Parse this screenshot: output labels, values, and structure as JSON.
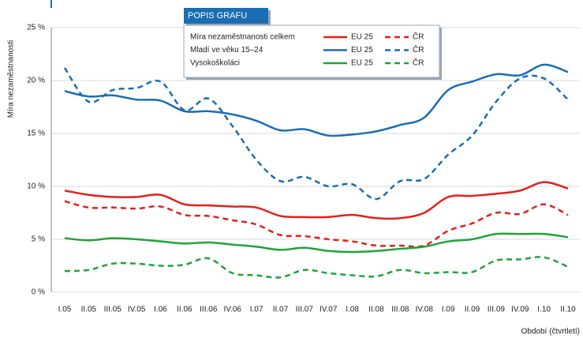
{
  "chart_data": {
    "type": "line",
    "y_label": "Míra nezaměstnanosti",
    "x_label": "Období (čtvrtletí)",
    "legend_title": "POPIS GRAFU",
    "legend_rows": [
      "Míra nezaměstnanosti celkem",
      "Mladí ve věku 15–24",
      "Vysokoškoláci"
    ],
    "categories": [
      "I.05",
      "II.05",
      "III.05",
      "IV.05",
      "I.06",
      "II.06",
      "III.06",
      "IV.06",
      "I.07",
      "II.07",
      "III.07",
      "IV.07",
      "I.08",
      "II.08",
      "III.08",
      "IV.08",
      "I.09",
      "II.09",
      "III.09",
      "IV.09",
      "I.10",
      "II.10"
    ],
    "ylim": [
      0,
      25
    ],
    "yticks": [
      {
        "value": 0,
        "label": "0 %"
      },
      {
        "value": 5,
        "label": "5 %"
      },
      {
        "value": 10,
        "label": "10 %"
      },
      {
        "value": 15,
        "label": "15 %"
      },
      {
        "value": 20,
        "label": "20 %"
      },
      {
        "value": 25,
        "label": "25 %"
      }
    ],
    "grid": true,
    "series": [
      {
        "name": "EU 25",
        "color": "#e2211c",
        "dashed": false,
        "values": [
          9.6,
          9.2,
          9.0,
          9.0,
          9.2,
          8.3,
          8.2,
          8.1,
          8.0,
          7.2,
          7.1,
          7.1,
          7.3,
          7.0,
          7.0,
          7.5,
          9.0,
          9.1,
          9.3,
          9.6,
          10.4,
          9.8
        ]
      },
      {
        "name": "ČR",
        "color": "#e2211c",
        "dashed": true,
        "values": [
          8.6,
          8.0,
          8.0,
          7.9,
          8.1,
          7.3,
          7.2,
          6.8,
          6.4,
          5.4,
          5.3,
          5.0,
          4.8,
          4.4,
          4.4,
          4.4,
          5.8,
          6.5,
          7.5,
          7.4,
          8.3,
          7.3
        ]
      },
      {
        "name": "EU 25",
        "color": "#1a6db3",
        "dashed": false,
        "values": [
          19.0,
          18.5,
          18.6,
          18.2,
          18.1,
          17.1,
          17.1,
          16.8,
          16.2,
          15.3,
          15.4,
          14.8,
          14.9,
          15.2,
          15.8,
          16.5,
          19.1,
          19.9,
          20.6,
          20.5,
          21.5,
          20.8
        ]
      },
      {
        "name": "ČR",
        "color": "#1a6db3",
        "dashed": true,
        "values": [
          21.2,
          18.0,
          19.1,
          19.3,
          19.9,
          17.2,
          18.3,
          15.7,
          12.5,
          10.5,
          10.9,
          10.0,
          10.2,
          8.8,
          10.5,
          10.7,
          13.0,
          14.8,
          18.0,
          20.2,
          20.2,
          18.2
        ]
      },
      {
        "name": "EU 25",
        "color": "#1fa33a",
        "dashed": false,
        "values": [
          5.1,
          4.9,
          5.1,
          5.0,
          4.8,
          4.6,
          4.7,
          4.5,
          4.3,
          4.0,
          4.2,
          3.9,
          3.8,
          3.9,
          4.1,
          4.3,
          4.8,
          5.0,
          5.5,
          5.5,
          5.5,
          5.2
        ]
      },
      {
        "name": "ČR",
        "color": "#1fa33a",
        "dashed": true,
        "values": [
          2.0,
          2.1,
          2.7,
          2.7,
          2.5,
          2.6,
          3.2,
          1.8,
          1.6,
          1.4,
          2.1,
          1.8,
          1.6,
          1.5,
          2.1,
          1.8,
          1.9,
          1.9,
          3.0,
          3.1,
          3.3,
          2.4
        ]
      }
    ]
  }
}
